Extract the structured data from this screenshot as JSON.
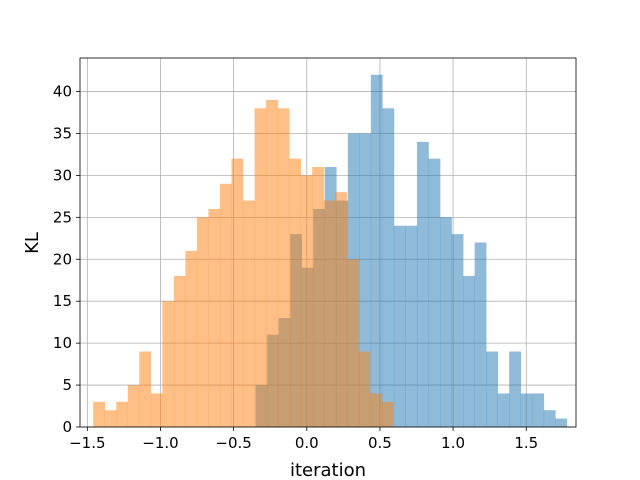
{
  "chart_data": {
    "type": "histogram",
    "title": "",
    "xlabel": "iteration",
    "ylabel": "KL",
    "xlim": [
      -1.55,
      1.84
    ],
    "ylim": [
      0,
      44
    ],
    "grid": true,
    "x_ticks": [
      -1.5,
      -1.0,
      -0.5,
      0.0,
      0.5,
      1.0,
      1.5
    ],
    "x_tick_labels": [
      "−1.5",
      "−1.0",
      "−0.5",
      "0.0",
      "0.5",
      "1.0",
      "1.5"
    ],
    "y_ticks": [
      0,
      5,
      10,
      15,
      20,
      25,
      30,
      35,
      40
    ],
    "y_tick_labels": [
      "0",
      "5",
      "10",
      "15",
      "20",
      "25",
      "30",
      "35",
      "40"
    ],
    "series": [
      {
        "color": "#1f77b4",
        "opacity": 0.5,
        "bin_start": -0.35,
        "bin_width": 0.0788,
        "counts": [
          5,
          11,
          13,
          23,
          19,
          26,
          31,
          27,
          35,
          35,
          42,
          38,
          24,
          24,
          34,
          32,
          25,
          23,
          18,
          22,
          9,
          4,
          9,
          4,
          4,
          2,
          1
        ]
      },
      {
        "color": "#ff7f0e",
        "opacity": 0.5,
        "bin_start": -1.46,
        "bin_width": 0.0788,
        "counts": [
          3,
          2,
          3,
          5,
          9,
          4,
          15,
          18,
          21,
          25,
          26,
          29,
          32,
          27,
          38,
          39,
          38,
          32,
          30,
          31,
          27,
          28,
          20,
          9,
          4,
          3
        ]
      }
    ]
  }
}
